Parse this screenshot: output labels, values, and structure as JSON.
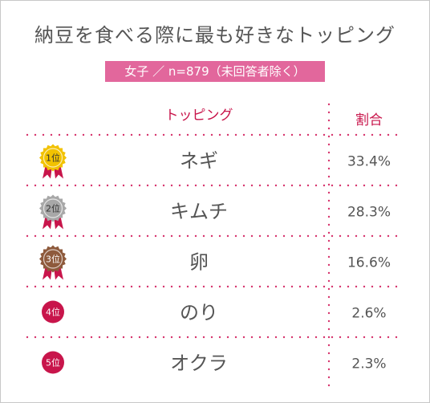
{
  "title": "納豆を食べる際に最も好きなトッピング",
  "subtitle": "女子 ／ n=879（未回答者除く）",
  "chart_data": {
    "type": "table",
    "title": "納豆を食べる際に最も好きなトッピング",
    "subtitle": "女子 ／ n=879（未回答者除く）",
    "columns": [
      "トッピング",
      "割合"
    ],
    "rows": [
      {
        "rank": "1位",
        "label": "ネギ",
        "value": 33.4,
        "display": "33.4%"
      },
      {
        "rank": "2位",
        "label": "キムチ",
        "value": 28.3,
        "display": "28.3%"
      },
      {
        "rank": "3位",
        "label": "卵",
        "value": 16.6,
        "display": "16.6%"
      },
      {
        "rank": "4位",
        "label": "のり",
        "value": 2.6,
        "display": "2.6%"
      },
      {
        "rank": "5位",
        "label": "オクラ",
        "value": 2.3,
        "display": "2.3%"
      }
    ]
  },
  "colors": {
    "accent": "#e2679c",
    "header_text": "#c8154b",
    "dots": "#d6336c",
    "gold": "#f2c200",
    "silver": "#a8a8a8",
    "bronze": "#8e5a3c",
    "rank_circle": "#c8154b",
    "ribbon": "#c8154b"
  }
}
